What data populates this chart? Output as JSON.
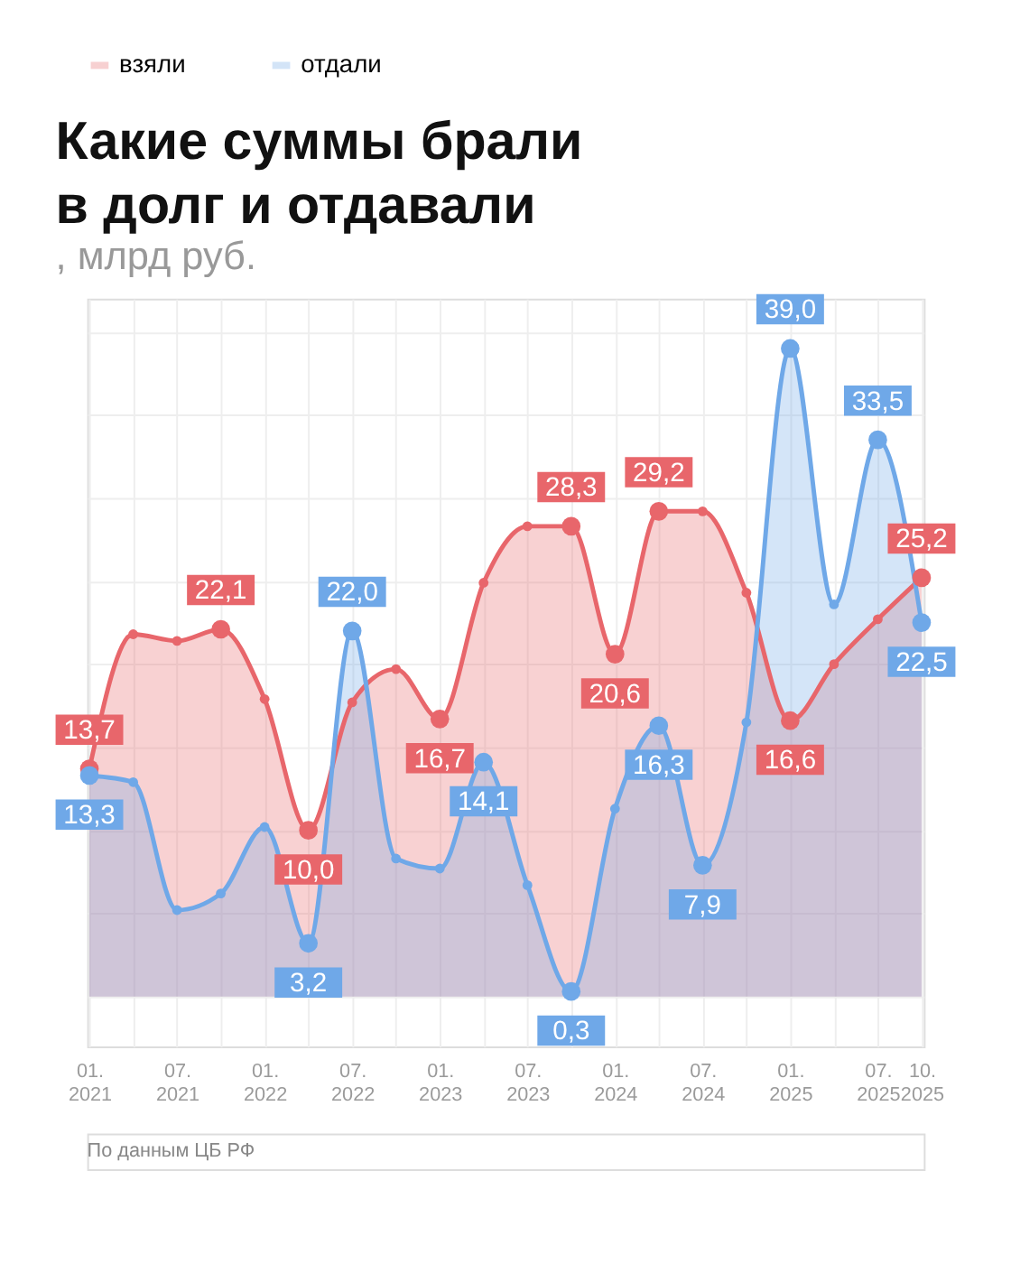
{
  "chart_data": {
    "type": "area",
    "title": "Какие суммы брали\nв долг и отдавали",
    "subtitle": ", млрд руб.",
    "categories": [
      "01.\n2021",
      null,
      "07.\n2021",
      null,
      "01.\n2022",
      null,
      "07.\n2022",
      null,
      "01.\n2023",
      null,
      "07.\n2023",
      null,
      "01.\n2024",
      null,
      "07.\n2024",
      null,
      "01.\n2025",
      null,
      "07.\n2025",
      "10.\n2025"
    ],
    "series": [
      {
        "name": "взяли",
        "color": "#e8666b",
        "values": [
          13.7,
          21.8,
          21.4,
          22.1,
          17.9,
          10.0,
          17.7,
          19.7,
          16.7,
          24.9,
          28.3,
          28.3,
          20.6,
          29.2,
          29.2,
          24.3,
          16.6,
          20.0,
          22.7,
          25.2
        ],
        "value_labels": [
          "13,7",
          null,
          null,
          "22,1",
          null,
          "10,0",
          null,
          null,
          "16,7",
          null,
          null,
          "28,3",
          "20,6",
          "29,2",
          null,
          null,
          "16,6",
          null,
          null,
          "25,2"
        ]
      },
      {
        "name": "отдали",
        "color": "#6fa8e8",
        "values": [
          13.3,
          12.9,
          5.2,
          6.2,
          10.2,
          3.2,
          22.0,
          8.3,
          7.7,
          14.1,
          6.7,
          0.3,
          11.3,
          16.3,
          7.9,
          16.5,
          39.0,
          23.6,
          33.5,
          22.5
        ],
        "value_labels": [
          "13,3",
          null,
          null,
          null,
          null,
          "3,2",
          "22,0",
          null,
          null,
          "14,1",
          null,
          "0,3",
          null,
          "16,3",
          "7,9",
          null,
          "39,0",
          null,
          "33,5",
          "22,5"
        ]
      }
    ],
    "legend": "top left",
    "grid": true,
    "marker": "circle",
    "tick_labels": "x",
    "annotations": [
      "По данным ЦБ РФ"
    ]
  }
}
